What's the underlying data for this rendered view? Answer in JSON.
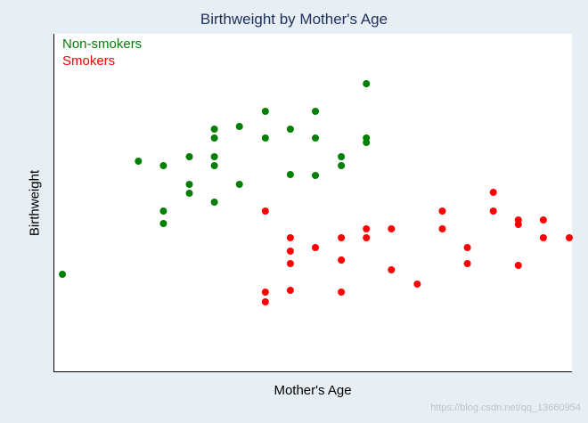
{
  "chart_data": {
    "type": "scatter",
    "title": "Birthweight by Mother's Age",
    "xlabel": "Mother's Age",
    "ylabel": "Birthweight",
    "xlim": [
      0,
      580
    ],
    "ylim": [
      0,
      380
    ],
    "grid": false,
    "legend_position": "top-left",
    "series": [
      {
        "name": "Non-smokers",
        "color": "#008000",
        "points": [
          [
            10,
            110
          ],
          [
            95,
            237
          ],
          [
            123,
            232
          ],
          [
            123,
            181
          ],
          [
            123,
            167
          ],
          [
            152,
            242
          ],
          [
            152,
            211
          ],
          [
            152,
            201
          ],
          [
            180,
            273
          ],
          [
            180,
            263
          ],
          [
            180,
            242
          ],
          [
            180,
            232
          ],
          [
            180,
            191
          ],
          [
            208,
            276
          ],
          [
            208,
            211
          ],
          [
            237,
            293
          ],
          [
            237,
            263
          ],
          [
            265,
            273
          ],
          [
            265,
            222
          ],
          [
            293,
            293
          ],
          [
            293,
            263
          ],
          [
            293,
            221
          ],
          [
            322,
            242
          ],
          [
            322,
            232
          ],
          [
            350,
            263
          ],
          [
            350,
            258
          ],
          [
            350,
            324
          ]
        ]
      },
      {
        "name": "Smokers",
        "color": "#ff0000",
        "points": [
          [
            237,
            181
          ],
          [
            237,
            90
          ],
          [
            237,
            79
          ],
          [
            265,
            151
          ],
          [
            265,
            136
          ],
          [
            265,
            122
          ],
          [
            265,
            92
          ],
          [
            293,
            140
          ],
          [
            322,
            151
          ],
          [
            322,
            126
          ],
          [
            322,
            90
          ],
          [
            350,
            161
          ],
          [
            350,
            151
          ],
          [
            378,
            161
          ],
          [
            378,
            115
          ],
          [
            407,
            99
          ],
          [
            435,
            181
          ],
          [
            435,
            161
          ],
          [
            463,
            140
          ],
          [
            463,
            122
          ],
          [
            492,
            202
          ],
          [
            492,
            181
          ],
          [
            520,
            171
          ],
          [
            520,
            166
          ],
          [
            520,
            120
          ],
          [
            548,
            171
          ],
          [
            548,
            151
          ],
          [
            577,
            151
          ]
        ]
      }
    ]
  },
  "watermark": "https://blog.csdn.net/qq_13660954"
}
